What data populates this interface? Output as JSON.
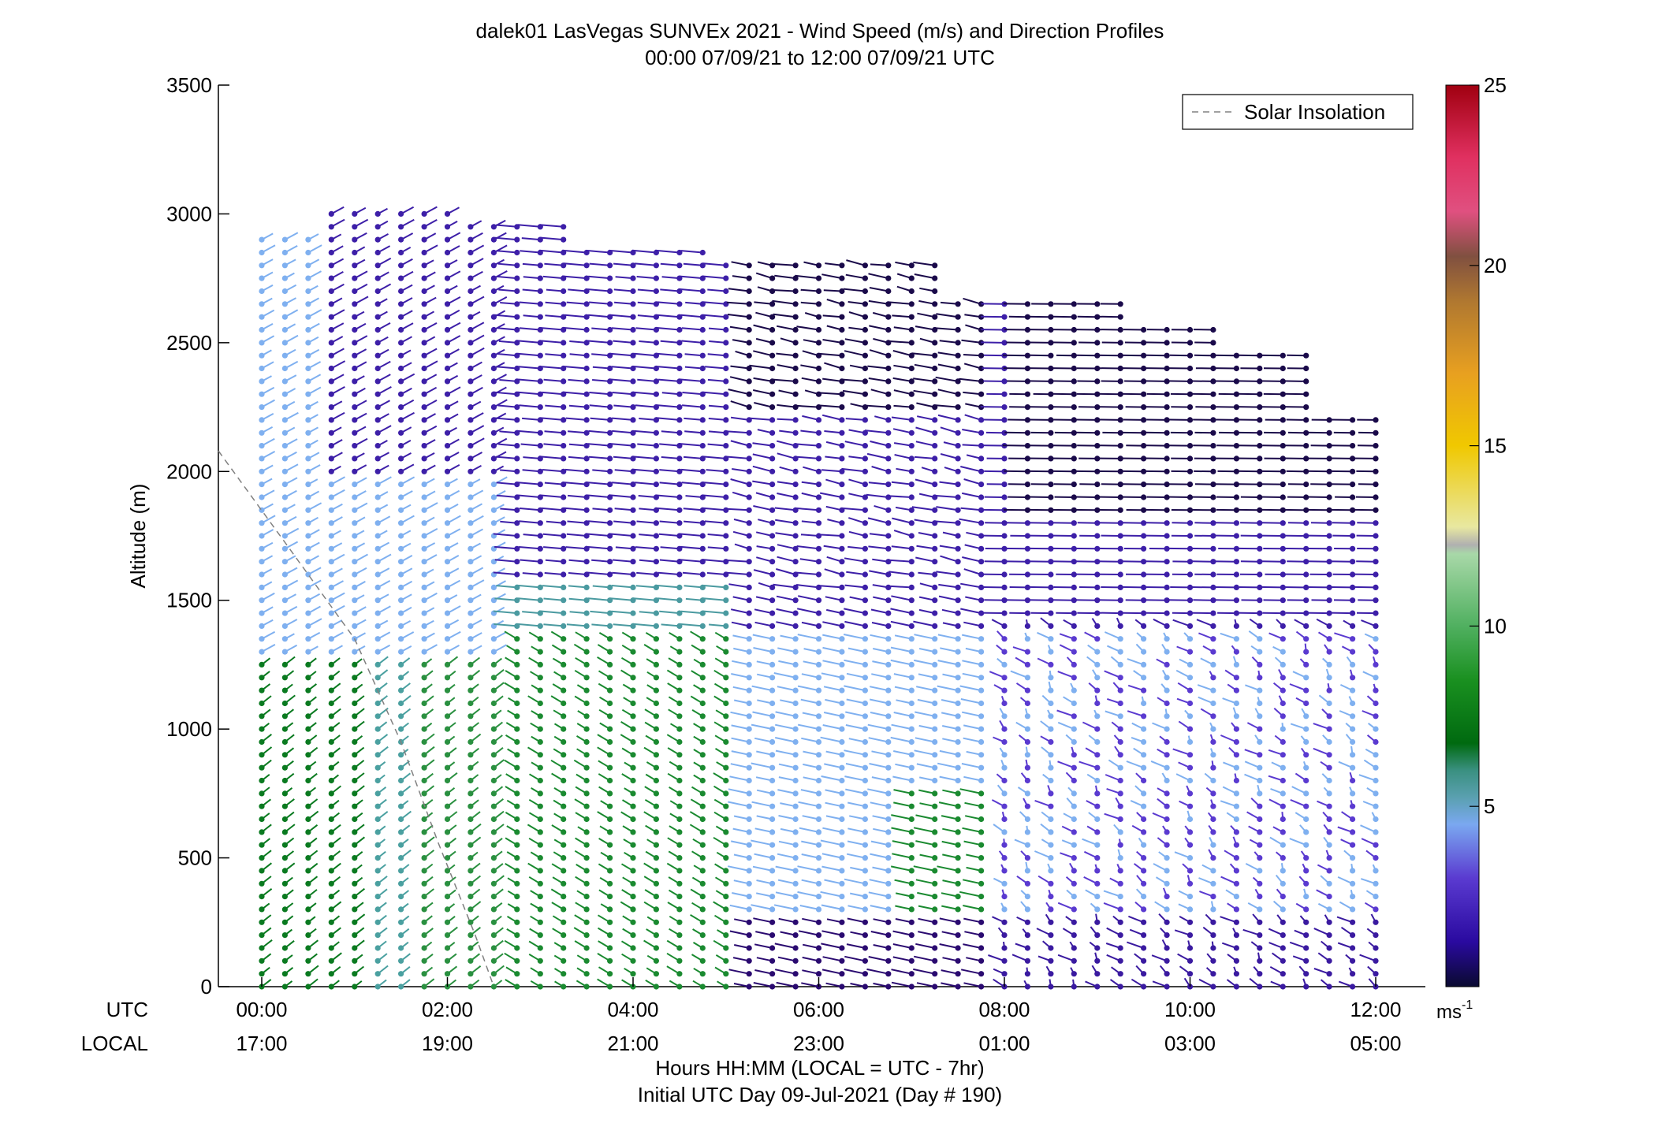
{
  "chart_data": {
    "type": "scatter",
    "title": "dalek01 LasVegas SUNVEx 2021 - Wind Speed (m/s) and Direction Profiles",
    "subtitle": "00:00 07/09/21 to 12:00 07/09/21  UTC",
    "ylabel": "Altitude (m)",
    "xlabel": "Hours HH:MM  (LOCAL = UTC - 7hr)",
    "xlabel2": "Initial UTC Day 09-Jul-2021 (Day # 190)",
    "xlim": [
      0,
      12
    ],
    "ylim": [
      0,
      3500
    ],
    "y_ticks": [
      0,
      500,
      1000,
      1500,
      2000,
      2500,
      3000,
      3500
    ],
    "x_row_label_utc": "UTC",
    "x_row_label_local": "LOCAL",
    "x_ticks_utc": [
      "00:00",
      "02:00",
      "04:00",
      "06:00",
      "08:00",
      "10:00",
      "12:00"
    ],
    "x_ticks_local": [
      "17:00",
      "19:00",
      "21:00",
      "23:00",
      "01:00",
      "03:00",
      "05:00"
    ],
    "legend": {
      "label": "Solar Insolation",
      "placement": "top-right"
    },
    "colorbar": {
      "ticks": [
        5,
        10,
        15,
        20,
        25
      ],
      "range": [
        0,
        25
      ],
      "unit": "ms",
      "unit_exp": "-1"
    },
    "solar_insolation_line": [
      [
        -0.5,
        2080
      ],
      [
        0.3,
        1700
      ],
      [
        1.0,
        1350
      ],
      [
        1.5,
        950
      ],
      [
        1.9,
        560
      ],
      [
        2.3,
        200
      ],
      [
        2.5,
        0
      ]
    ],
    "wind_profiles": {
      "time_step_hours": 0.25,
      "height_step_m": 50,
      "note_columns": "49 profiles from 00:00 to 12:00 UTC"
    },
    "colors": {
      "axis": "#000000",
      "dashed": "#808080",
      "low_speed": "#1a0a4a",
      "mid_speed": "#3d1fa8",
      "light_blue": "#7fb0f0",
      "green": "#0a8a20",
      "teal": "#4aa0a0"
    }
  }
}
